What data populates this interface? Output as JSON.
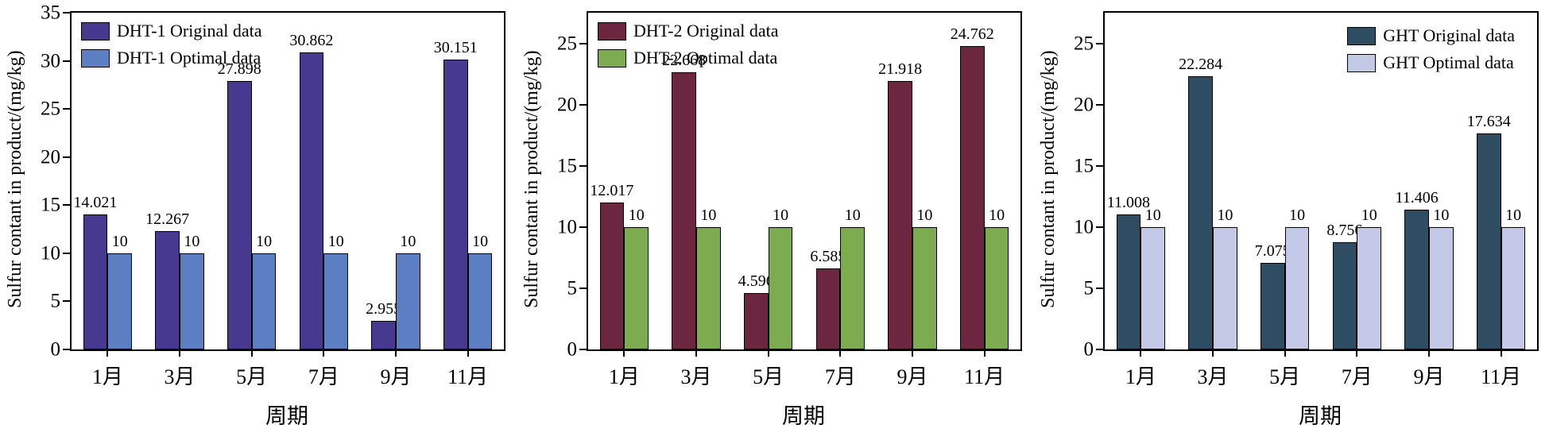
{
  "chart_data": [
    {
      "type": "bar",
      "title": "",
      "ylabel": "Sulfur contant in product/(mg/kg)",
      "xlabel": "周期",
      "categories": [
        "1月",
        "3月",
        "5月",
        "7月",
        "9月",
        "11月"
      ],
      "yticks": [
        0,
        5,
        10,
        15,
        20,
        25,
        30,
        35
      ],
      "ylim": [
        0,
        35
      ],
      "scale_max": 35,
      "grid": false,
      "legend_position": "top-left",
      "series": [
        {
          "id": "dht1-original",
          "name": "DHT-1 Original data",
          "color": "#46398f",
          "values": [
            14.021,
            12.267,
            27.898,
            30.862,
            2.955,
            30.151
          ],
          "labels": [
            "14.021",
            "12.267",
            "27.898",
            "30.862",
            "2.955",
            "30.151"
          ]
        },
        {
          "id": "dht1-optimal",
          "name": "DHT-1 Optimal data",
          "color": "#5c7ec3",
          "values": [
            10,
            10,
            10,
            10,
            10,
            10
          ],
          "labels": [
            "10",
            "10",
            "10",
            "10",
            "10",
            "10"
          ]
        }
      ]
    },
    {
      "type": "bar",
      "title": "",
      "ylabel": "Sulfur contant in product/(mg/kg)",
      "xlabel": "周期",
      "categories": [
        "1月",
        "3月",
        "5月",
        "7月",
        "9月",
        "11月"
      ],
      "yticks": [
        0,
        5,
        10,
        15,
        20,
        25
      ],
      "ylim": [
        0,
        25
      ],
      "scale_max": 27.5,
      "grid": false,
      "legend_position": "top-left",
      "series": [
        {
          "id": "dht2-original",
          "name": "DHT-2 Original data",
          "color": "#6d2640",
          "values": [
            12.017,
            22.668,
            4.596,
            6.585,
            21.918,
            24.762
          ],
          "labels": [
            "12.017",
            "22.668",
            "4.596",
            "6.585",
            "21.918",
            "24.762"
          ]
        },
        {
          "id": "dht2-optimal",
          "name": "DHT-2 Optimal data",
          "color": "#7cab50",
          "values": [
            10,
            10,
            10,
            10,
            10,
            10
          ],
          "labels": [
            "10",
            "10",
            "10",
            "10",
            "10",
            "10"
          ]
        }
      ]
    },
    {
      "type": "bar",
      "title": "",
      "ylabel": "Sulfur contant in product/(mg/kg)",
      "xlabel": "周期",
      "categories": [
        "1月",
        "3月",
        "5月",
        "7月",
        "9月",
        "11月"
      ],
      "yticks": [
        0,
        5,
        10,
        15,
        20,
        25
      ],
      "ylim": [
        0,
        25
      ],
      "scale_max": 27.5,
      "grid": false,
      "legend_position": "top-right",
      "series": [
        {
          "id": "ght-original",
          "name": "GHT Original data",
          "color": "#2e4d62",
          "values": [
            11.008,
            22.284,
            7.075,
            8.756,
            11.406,
            17.634
          ],
          "labels": [
            "11.008",
            "22.284",
            "7.075",
            "8.756",
            "11.406",
            "17.634"
          ]
        },
        {
          "id": "ght-optimal",
          "name": "GHT Optimal data",
          "color": "#c5c9e8",
          "values": [
            10,
            10,
            10,
            10,
            10,
            10
          ],
          "labels": [
            "10",
            "10",
            "10",
            "10",
            "10",
            "10"
          ]
        }
      ]
    }
  ]
}
